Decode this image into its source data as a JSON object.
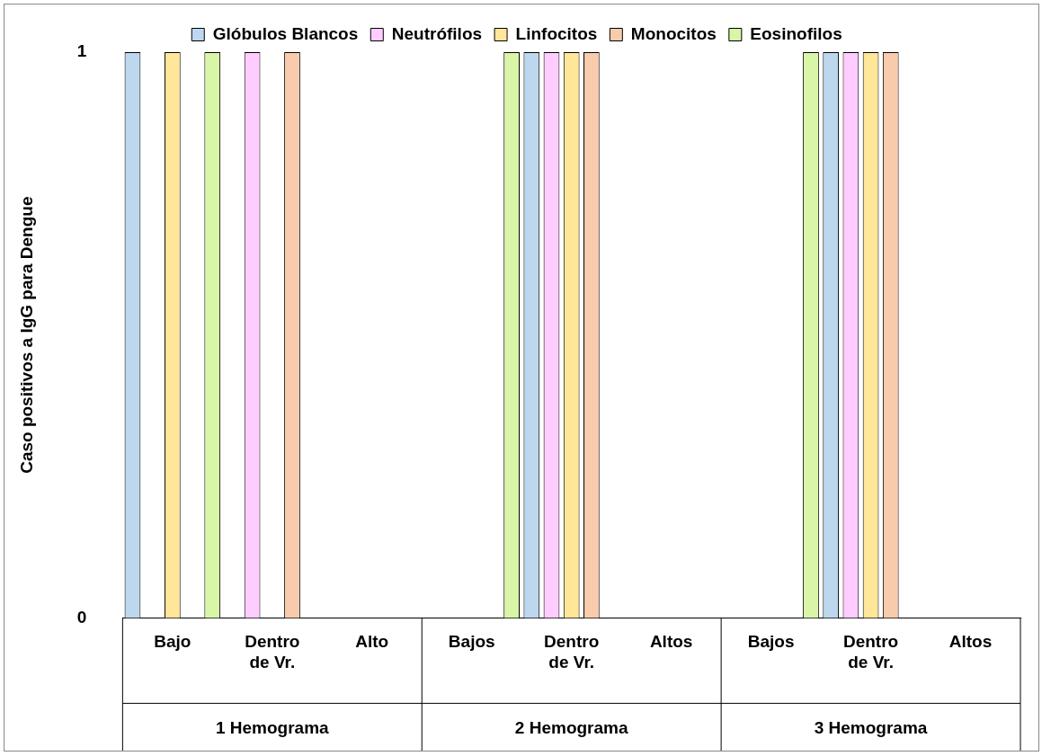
{
  "chart_data": {
    "type": "bar",
    "ylabel": "Caso positivos a IgG para Dengue",
    "categories": [
      "Bajo",
      "Dentro de Vr.",
      "Alto",
      "Bajos",
      "Dentro de Vr.",
      "Altos",
      "Bajos",
      "Dentro de Vr.",
      "Altos"
    ],
    "annotations": [
      "1 Hemograma",
      "2 Hemograma",
      "3 Hemograma"
    ],
    "series": [
      {
        "name": "Glóbulos Blancos",
        "color": "#bdd7ee",
        "values": [
          1,
          0,
          0,
          0,
          1,
          0,
          0,
          1,
          0
        ]
      },
      {
        "name": "Neutrófilos",
        "color": "#ffccff",
        "values": [
          0,
          1,
          0,
          0,
          1,
          0,
          0,
          1,
          0
        ]
      },
      {
        "name": "Linfocitos",
        "color": "#ffe699",
        "values": [
          1,
          0,
          0,
          0,
          1,
          0,
          0,
          1,
          0
        ]
      },
      {
        "name": "Monocitos",
        "color": "#f8cbad",
        "values": [
          0,
          1,
          0,
          0,
          1,
          0,
          0,
          1,
          0
        ]
      },
      {
        "name": "Eosinofilos",
        "color": "#d9f5a8",
        "values": [
          1,
          0,
          0,
          1,
          0,
          0,
          1,
          0,
          0
        ]
      }
    ],
    "ylim": [
      0,
      1
    ],
    "yticks": [
      0,
      1
    ],
    "grid": false,
    "legend": "top"
  }
}
